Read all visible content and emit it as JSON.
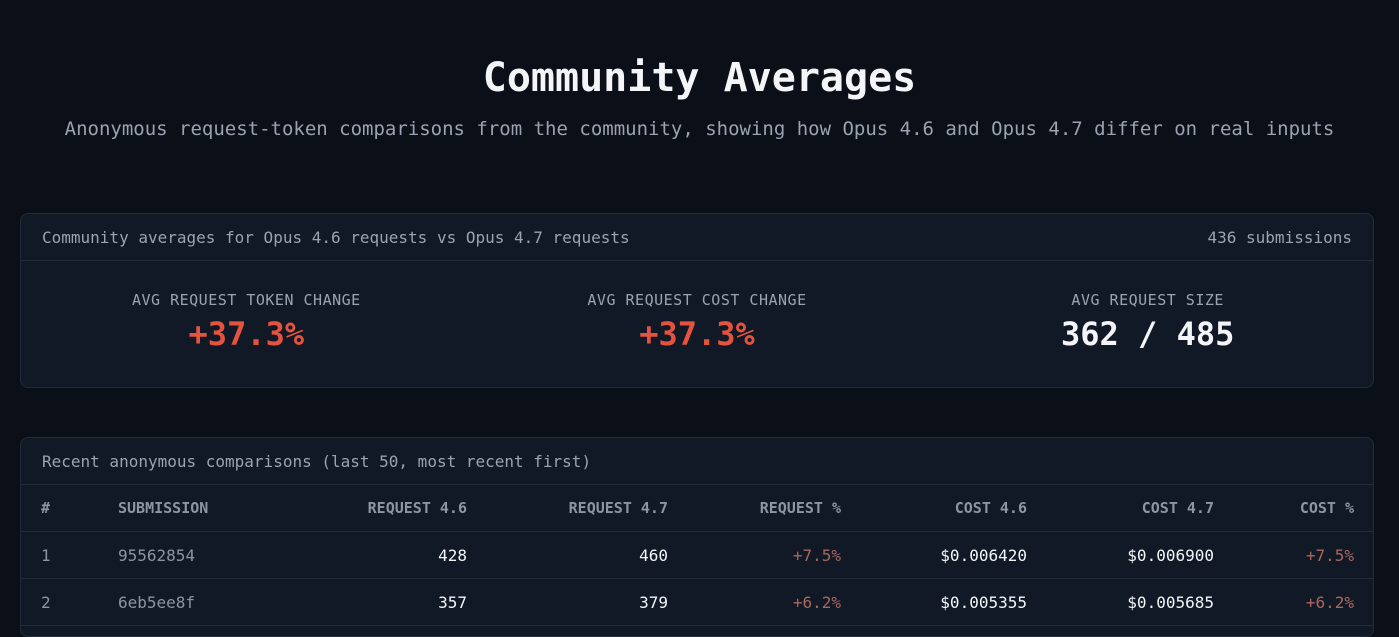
{
  "header": {
    "title": "Community Averages",
    "subtitle": "Anonymous request-token comparisons from the community, showing how Opus 4.6 and Opus 4.7 differ on real inputs"
  },
  "summary": {
    "heading": "Community averages for Opus 4.6 requests vs Opus 4.7 requests",
    "submissions": "436 submissions",
    "stats": [
      {
        "label": "AVG REQUEST TOKEN CHANGE",
        "value": "+37.3%"
      },
      {
        "label": "AVG REQUEST COST CHANGE",
        "value": "+37.3%"
      },
      {
        "label": "AVG REQUEST SIZE",
        "value": "362 / 485"
      }
    ]
  },
  "recent": {
    "heading": "Recent anonymous comparisons (last 50, most recent first)",
    "columns": [
      "#",
      "SUBMISSION",
      "REQUEST 4.6",
      "REQUEST 4.7",
      "REQUEST %",
      "COST 4.6",
      "COST 4.7",
      "COST %"
    ],
    "rows": [
      [
        "1",
        "95562854",
        "428",
        "460",
        "+7.5%",
        "$0.006420",
        "$0.006900",
        "+7.5%"
      ],
      [
        "2",
        "6eb5ee8f",
        "357",
        "379",
        "+6.2%",
        "$0.005355",
        "$0.005685",
        "+6.2%"
      ]
    ]
  },
  "colors": {
    "background": "#0b0f17",
    "card": "#121926",
    "increase": "#e5533f",
    "row_increase": "#a8675e"
  }
}
